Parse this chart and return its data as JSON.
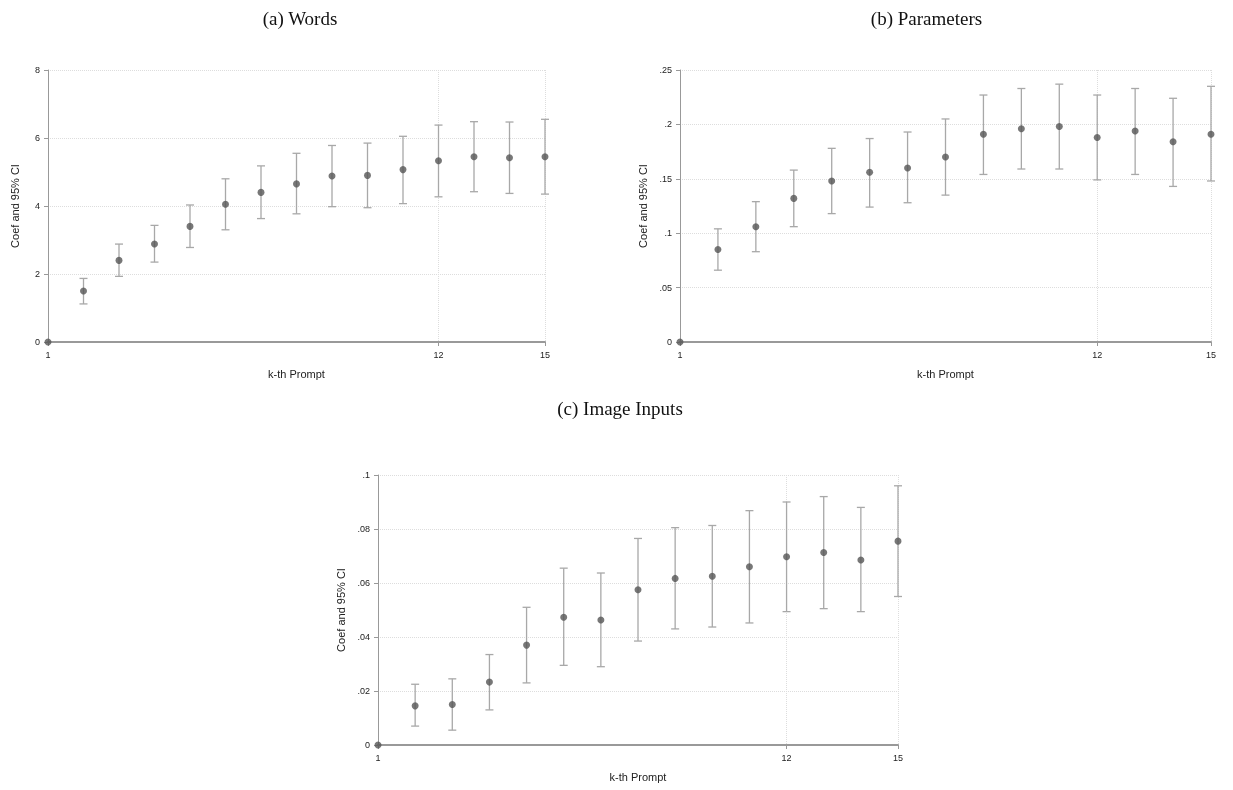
{
  "chart_data": [
    {
      "type": "scatter",
      "title": "(a) Words",
      "xlabel": "k-th Prompt",
      "ylabel": "Coef and 95% CI",
      "x": [
        1,
        2,
        3,
        4,
        5,
        6,
        7,
        8,
        9,
        10,
        11,
        12,
        13,
        14,
        15
      ],
      "xlim": [
        1,
        15
      ],
      "xticks": [
        1,
        12,
        15
      ],
      "ylim": [
        0,
        8
      ],
      "yticks": [
        0,
        2,
        4,
        6,
        8
      ],
      "grid": true,
      "marker": "circle",
      "series": [
        {
          "color": "#555555",
          "values": [
            0,
            1.5,
            2.4,
            2.88,
            3.4,
            4.05,
            4.4,
            4.65,
            4.88,
            4.9,
            5.07,
            5.33,
            5.45,
            5.42,
            5.45
          ],
          "errors": [
            null,
            [
              1.12,
              1.87
            ],
            [
              1.93,
              2.88
            ],
            [
              2.35,
              3.43
            ],
            [
              2.78,
              4.03
            ],
            [
              3.3,
              4.8
            ],
            [
              3.63,
              5.18
            ],
            [
              3.77,
              5.55
            ],
            [
              3.98,
              5.78
            ],
            [
              3.95,
              5.85
            ],
            [
              4.07,
              6.05
            ],
            [
              4.27,
              6.38
            ],
            [
              4.42,
              6.48
            ],
            [
              4.37,
              6.47
            ],
            [
              4.35,
              6.55
            ]
          ]
        }
      ]
    },
    {
      "type": "scatter",
      "title": "(b) Parameters",
      "xlabel": "k-th Prompt",
      "ylabel": "Coef and 95% CI",
      "x": [
        1,
        2,
        3,
        4,
        5,
        6,
        7,
        8,
        9,
        10,
        11,
        12,
        13,
        14,
        15
      ],
      "xlim": [
        1,
        15
      ],
      "xticks": [
        1,
        12,
        15
      ],
      "ylim": [
        0,
        0.25
      ],
      "yticks": [
        0,
        {
          "value": 0.05,
          "label": ".05"
        },
        {
          "value": 0.1,
          "label": ".1"
        },
        {
          "value": 0.15,
          "label": ".15"
        },
        {
          "value": 0.2,
          "label": ".2"
        },
        {
          "value": 0.25,
          "label": ".25"
        }
      ],
      "grid": true,
      "marker": "circle",
      "series": [
        {
          "color": "#555555",
          "values": [
            0,
            0.085,
            0.106,
            0.132,
            0.148,
            0.156,
            0.16,
            0.17,
            0.191,
            0.196,
            0.198,
            0.188,
            0.194,
            0.184,
            0.191
          ],
          "errors": [
            null,
            [
              0.066,
              0.104
            ],
            [
              0.083,
              0.129
            ],
            [
              0.106,
              0.158
            ],
            [
              0.118,
              0.178
            ],
            [
              0.124,
              0.187
            ],
            [
              0.128,
              0.193
            ],
            [
              0.135,
              0.205
            ],
            [
              0.154,
              0.227
            ],
            [
              0.159,
              0.233
            ],
            [
              0.159,
              0.237
            ],
            [
              0.149,
              0.227
            ],
            [
              0.154,
              0.233
            ],
            [
              0.143,
              0.224
            ],
            [
              0.148,
              0.235
            ]
          ]
        }
      ]
    },
    {
      "type": "scatter",
      "title": "(c) Image Inputs",
      "xlabel": "k-th Prompt",
      "ylabel": "Coef and 95% CI",
      "x": [
        1,
        2,
        3,
        4,
        5,
        6,
        7,
        8,
        9,
        10,
        11,
        12,
        13,
        14,
        15
      ],
      "xlim": [
        1,
        15
      ],
      "xticks": [
        1,
        12,
        15
      ],
      "ylim": [
        0,
        0.1
      ],
      "yticks": [
        0,
        {
          "value": 0.02,
          "label": ".02"
        },
        {
          "value": 0.04,
          "label": ".04"
        },
        {
          "value": 0.06,
          "label": ".06"
        },
        {
          "value": 0.08,
          "label": ".08"
        },
        {
          "value": 0.1,
          "label": ".1"
        }
      ],
      "grid": true,
      "marker": "circle",
      "series": [
        {
          "color": "#555555",
          "values": [
            0,
            0.0145,
            0.015,
            0.0233,
            0.037,
            0.0473,
            0.0463,
            0.0575,
            0.0617,
            0.0625,
            0.066,
            0.0697,
            0.0713,
            0.0685,
            0.0755
          ],
          "errors": [
            null,
            [
              0.007,
              0.0225
            ],
            [
              0.0055,
              0.0245
            ],
            [
              0.013,
              0.0335
            ],
            [
              0.023,
              0.051
            ],
            [
              0.0295,
              0.0655
            ],
            [
              0.029,
              0.0637
            ],
            [
              0.0385,
              0.0765
            ],
            [
              0.043,
              0.0805
            ],
            [
              0.0437,
              0.0813
            ],
            [
              0.0452,
              0.0868
            ],
            [
              0.0494,
              0.09
            ],
            [
              0.0505,
              0.092
            ],
            [
              0.0494,
              0.088
            ],
            [
              0.055,
              0.096
            ]
          ]
        }
      ]
    }
  ]
}
